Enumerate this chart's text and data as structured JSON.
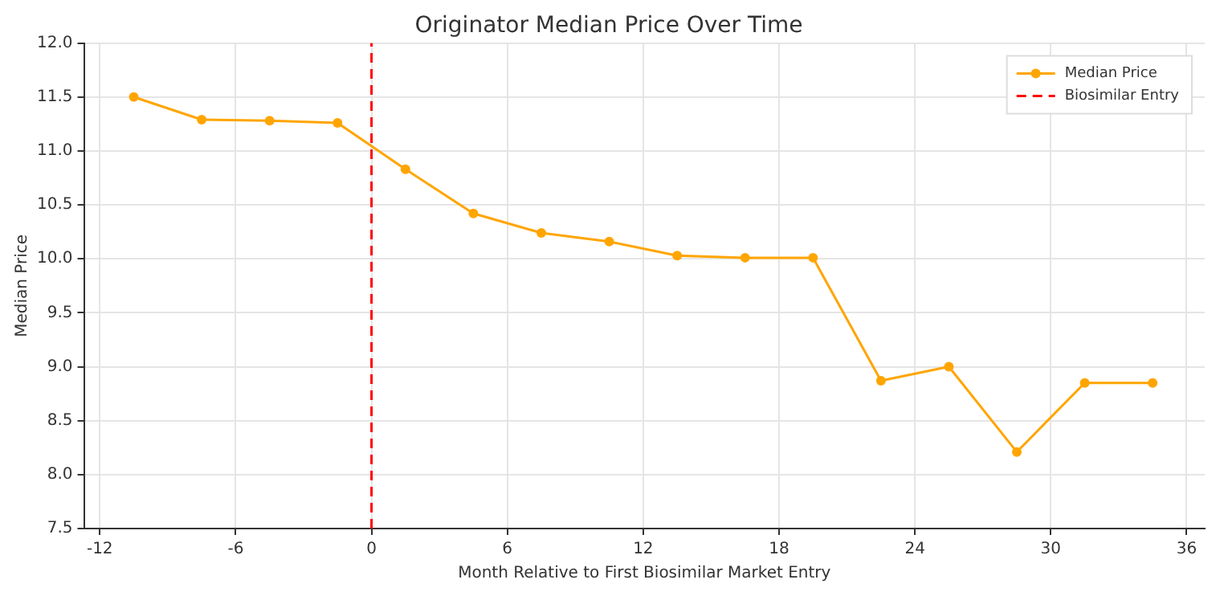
{
  "chart_data": {
    "type": "line",
    "title": "Originator Median Price Over Time",
    "xlabel": "Month Relative to First Biosimilar Market Entry",
    "ylabel": "Median Price",
    "x": [
      -10.5,
      -7.5,
      -4.5,
      -1.5,
      1.5,
      4.5,
      7.5,
      10.5,
      13.5,
      16.5,
      19.5,
      22.5,
      25.5,
      28.5,
      31.5,
      34.5
    ],
    "series": [
      {
        "name": "Median Price",
        "color": "#ffa500",
        "values": [
          11.5,
          11.29,
          11.28,
          11.26,
          10.83,
          10.42,
          10.24,
          10.16,
          10.03,
          10.01,
          10.01,
          8.87,
          9.0,
          8.21,
          8.85,
          8.85
        ]
      },
      {
        "name": "Biosimilar Entry",
        "color": "#ff0000",
        "x": [
          0,
          0
        ],
        "values": [
          7.5,
          12.0
        ],
        "line_style": "dashed",
        "marker": "none"
      }
    ],
    "xlim": [
      -12.7,
      36.8
    ],
    "xticks": [
      -12,
      -6,
      0,
      6,
      12,
      18,
      24,
      30,
      36
    ],
    "ylim": [
      7.5,
      12.0
    ],
    "yticks": [
      {
        "value": 7.5,
        "label": "7.5"
      },
      {
        "value": 8.0,
        "label": "8.0"
      },
      {
        "value": 8.5,
        "label": "8.5"
      },
      {
        "value": 9.0,
        "label": "9.0"
      },
      {
        "value": 9.5,
        "label": "9.5"
      },
      {
        "value": 10.0,
        "label": "10.0"
      },
      {
        "value": 10.5,
        "label": "10.5"
      },
      {
        "value": 11.0,
        "label": "11.0"
      },
      {
        "value": 11.5,
        "label": "11.5"
      },
      {
        "value": 12.0,
        "label": "12.0"
      }
    ],
    "grid": true,
    "legend": "top right",
    "marker": "circle",
    "line_style": "solid"
  }
}
